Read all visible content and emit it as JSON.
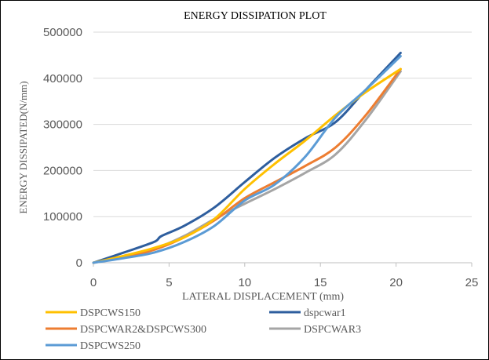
{
  "chart_data": {
    "type": "line",
    "title": "ENERGY DISSIPATION PLOT",
    "xlabel": "LATERAL DISPLACEMENT (mm)",
    "ylabel": "ENERGY DISSIPATED(N/mm)",
    "xlim": [
      0,
      25
    ],
    "ylim": [
      0,
      500000
    ],
    "x_ticks": [
      0,
      5,
      10,
      15,
      20,
      25
    ],
    "y_ticks": [
      0,
      100000,
      200000,
      300000,
      400000,
      500000
    ],
    "x_tick_labels": [
      "0",
      "5",
      "10",
      "15",
      "20",
      "25"
    ],
    "y_tick_labels": [
      "0",
      "100000",
      "200000",
      "300000",
      "400000",
      "500000"
    ],
    "grid": "horizontal",
    "legend_position": "bottom",
    "series": [
      {
        "name": "DSPCWS150",
        "color": "#FFC000",
        "points": [
          [
            0,
            0
          ],
          [
            2,
            15000
          ],
          [
            4,
            32000
          ],
          [
            6,
            55000
          ],
          [
            8,
            95000
          ],
          [
            10,
            160000
          ],
          [
            12,
            215000
          ],
          [
            14,
            265000
          ],
          [
            16,
            320000
          ],
          [
            18,
            370000
          ],
          [
            20.3,
            420000
          ]
        ]
      },
      {
        "name": "dspcwar1",
        "color": "#2E5E9E",
        "points": [
          [
            0,
            0
          ],
          [
            2,
            22000
          ],
          [
            4,
            45000
          ],
          [
            4.5,
            58000
          ],
          [
            6,
            80000
          ],
          [
            8,
            120000
          ],
          [
            10,
            175000
          ],
          [
            12,
            228000
          ],
          [
            14,
            270000
          ],
          [
            16,
            305000
          ],
          [
            18,
            375000
          ],
          [
            20.3,
            455000
          ]
        ]
      },
      {
        "name": "DSPCWAR2&DSPCWS300",
        "color": "#ED7D31",
        "points": [
          [
            0,
            0
          ],
          [
            2,
            12000
          ],
          [
            4,
            28000
          ],
          [
            6,
            55000
          ],
          [
            8,
            92000
          ],
          [
            10,
            140000
          ],
          [
            12,
            175000
          ],
          [
            14,
            210000
          ],
          [
            16,
            250000
          ],
          [
            18,
            320000
          ],
          [
            20.3,
            420000
          ]
        ]
      },
      {
        "name": "DSPCWAR3",
        "color": "#A5A5A5",
        "points": [
          [
            0,
            0
          ],
          [
            2,
            14000
          ],
          [
            4,
            30000
          ],
          [
            6,
            58000
          ],
          [
            8,
            95000
          ],
          [
            10,
            128000
          ],
          [
            12,
            160000
          ],
          [
            14,
            195000
          ],
          [
            16,
            235000
          ],
          [
            18,
            310000
          ],
          [
            20.3,
            415000
          ]
        ]
      },
      {
        "name": "DSPCWS250",
        "color": "#5B9BD5",
        "points": [
          [
            0,
            0
          ],
          [
            2,
            10000
          ],
          [
            4,
            22000
          ],
          [
            6,
            45000
          ],
          [
            8,
            80000
          ],
          [
            10,
            135000
          ],
          [
            12,
            170000
          ],
          [
            14,
            230000
          ],
          [
            16,
            315000
          ],
          [
            18,
            375000
          ],
          [
            20.3,
            448000
          ]
        ]
      }
    ]
  }
}
